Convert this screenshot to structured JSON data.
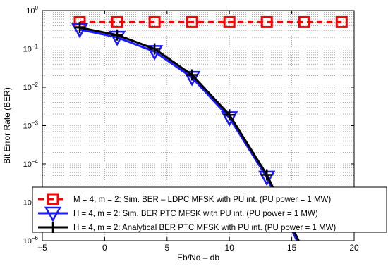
{
  "chart_data": {
    "type": "line",
    "title": "",
    "xlabel": "Eb/No – db",
    "ylabel": "Bit Error Rate (BER)",
    "x_axis": {
      "range": [
        -5,
        20
      ],
      "ticks": [
        -5,
        0,
        5,
        10,
        15,
        20
      ],
      "tick_labels": [
        "−5",
        "0",
        "5",
        "10",
        "15",
        "20"
      ]
    },
    "y_axis": {
      "scale": "log",
      "range": [
        1e-06,
        1
      ],
      "ticks": [
        1e-06,
        1e-05,
        0.0001,
        0.001,
        0.01,
        0.1,
        1
      ],
      "tick_exponents": [
        "−6",
        "−5",
        "−4",
        "−3",
        "−2",
        "−1",
        "0"
      ]
    },
    "grid": true,
    "legend_placement": "bottom",
    "series": [
      {
        "name": "M = 4, m = 2: Sim. BER – LDPC MFSK with PU int. (PU power  = 1 MW)",
        "color": "#ff0000",
        "line_style": "dashed",
        "marker": "square",
        "x": [
          -2,
          1,
          4,
          7,
          10,
          13,
          16,
          19
        ],
        "y": [
          0.5,
          0.5,
          0.5,
          0.5,
          0.5,
          0.5,
          0.5,
          0.5
        ]
      },
      {
        "name": "H = 4, m = 2: Sim. BER PTC MFSK with PU int. (PU power = 1 MW)",
        "color": "#1a1aff",
        "line_style": "solid",
        "marker": "triangle-down",
        "x": [
          -2,
          1,
          4,
          7,
          10,
          13,
          16
        ],
        "y": [
          0.32,
          0.2,
          0.085,
          0.018,
          0.0016,
          4.5e-05,
          4e-07
        ]
      },
      {
        "name": "H = 4, m = 2: Analytical BER PTC MFSK with PU int. (PU power = 1 MW)",
        "color": "#000000",
        "line_style": "solid",
        "marker": "plus",
        "x": [
          -2,
          1,
          4,
          7,
          10,
          13,
          16
        ],
        "y": [
          0.36,
          0.23,
          0.1,
          0.021,
          0.0019,
          5.2e-05,
          5e-07
        ]
      }
    ]
  }
}
